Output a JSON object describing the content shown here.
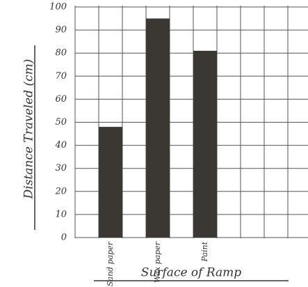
{
  "chart_data": {
    "type": "bar",
    "y_label": "Distance Traveled (cm)",
    "x_label": "Surface of Ramp",
    "categories": [
      "Sand paper",
      "Wax paper",
      "Paint"
    ],
    "values": [
      48,
      95,
      81
    ],
    "color": "#3b3733",
    "ylim": [
      0,
      100
    ],
    "yticks": [
      0,
      10,
      20,
      30,
      40,
      50,
      60,
      70,
      80,
      90,
      100
    ],
    "grid": true
  }
}
